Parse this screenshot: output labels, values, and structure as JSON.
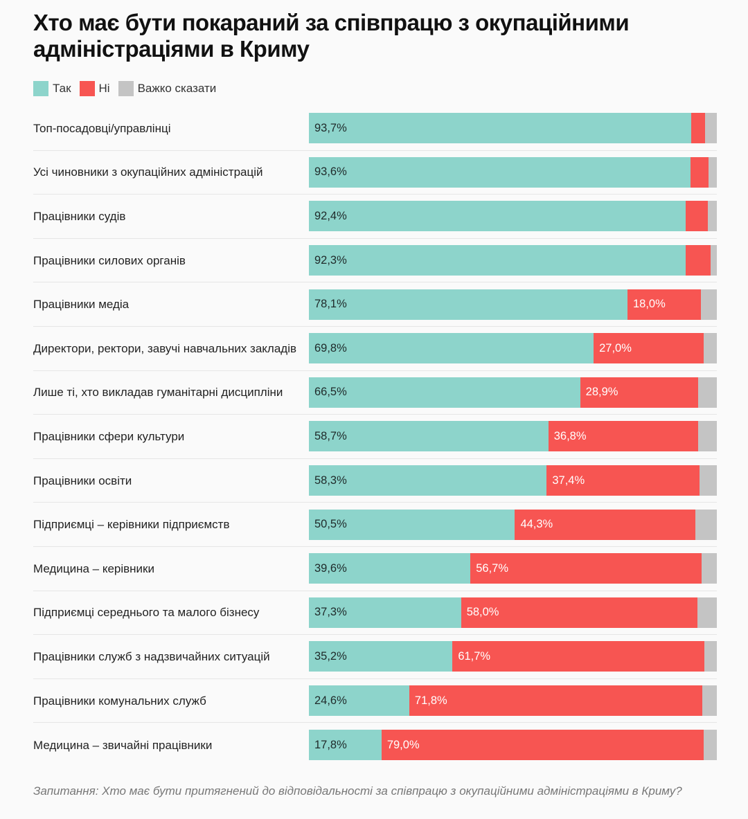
{
  "title": "Хто має бути покараний за співпрацю з окупаційними адміністраціями в Криму",
  "note": "Запитання: Хто має бути притягнений до відповідальності за співпрацю з окупаційними адміністраціями в Криму?",
  "chart_data": {
    "type": "bar",
    "orientation": "horizontal-stacked-100",
    "title": "Хто має бути покараний за співпрацю з окупаційними адміністраціями в Криму",
    "legend_position": "top-left",
    "categories": [
      "Топ-посадовці/управлінці",
      "Усі чиновники з окупаційних адміністрацій",
      "Працівники судів",
      "Працівники силових органів",
      "Працівники медіа",
      "Директори, ректори, завучі навчальних закладів",
      "Лише ті, хто викладав гуманітарні дисципліни",
      "Працівники сфери культури",
      "Працівники освіти",
      "Підприємці – керівники підприємств",
      "Медицина – керівники",
      "Підприємці середнього та малого бізнесу",
      "Працівники служб з надзвичайних ситуацій",
      "Працівники комунальних служб",
      "Медицина – звичайні працівники"
    ],
    "series": [
      {
        "name": "Так",
        "color": "#8dd4cb",
        "values": [
          93.7,
          93.6,
          92.4,
          92.3,
          78.1,
          69.8,
          66.5,
          58.7,
          58.3,
          50.5,
          39.6,
          37.3,
          35.2,
          24.6,
          17.8
        ],
        "labeled": [
          true,
          true,
          true,
          true,
          true,
          true,
          true,
          true,
          true,
          true,
          true,
          true,
          true,
          true,
          true
        ]
      },
      {
        "name": "Ні",
        "color": "#f75552",
        "values": [
          3.4,
          4.4,
          5.4,
          6.1,
          18.0,
          27.0,
          28.9,
          36.8,
          37.4,
          44.3,
          56.7,
          58.0,
          61.7,
          71.8,
          79.0
        ],
        "labeled": [
          false,
          false,
          false,
          false,
          true,
          true,
          true,
          true,
          true,
          true,
          true,
          true,
          true,
          true,
          true
        ]
      },
      {
        "name": "Важко сказати",
        "color": "#c4c4c4",
        "values": [
          2.9,
          2.0,
          2.2,
          1.6,
          3.9,
          3.2,
          4.6,
          4.5,
          4.3,
          5.2,
          3.7,
          4.7,
          3.1,
          3.6,
          3.2
        ],
        "labeled": [
          false,
          false,
          false,
          false,
          false,
          false,
          false,
          false,
          false,
          false,
          false,
          false,
          false,
          false,
          false
        ]
      }
    ],
    "xlim": [
      0,
      100
    ],
    "value_suffix": "%"
  }
}
